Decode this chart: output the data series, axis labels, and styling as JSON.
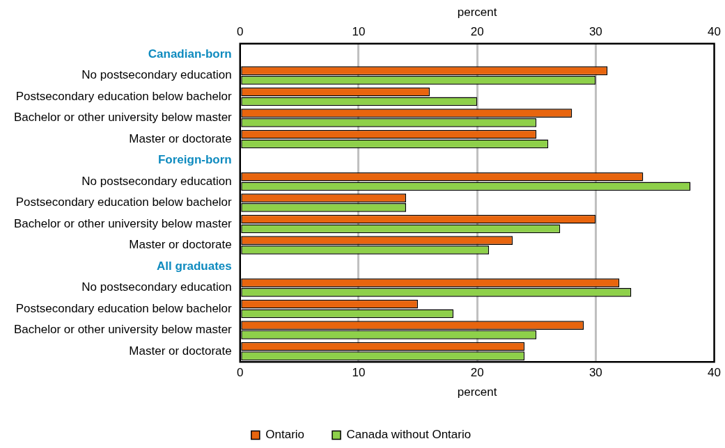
{
  "chart_data": {
    "type": "bar",
    "orientation": "horizontal",
    "xlabel": "percent",
    "x2label": "percent",
    "categories": [
      "Canadian-born",
      "No postsecondary education",
      "Postsecondary education below bachelor",
      "Bachelor or other university below master",
      "Master or doctorate",
      "Foreign-born",
      "No postsecondary education",
      "Postsecondary education below bachelor",
      "Bachelor or other university below master",
      "Master or doctorate",
      "All graduates",
      "No postsecondary education",
      "Postsecondary education below bachelor",
      "Bachelor or other university below master",
      "Master or doctorate"
    ],
    "series": [
      {
        "name": "Ontario",
        "color": "#e8650e",
        "values": [
          null,
          31,
          16,
          28,
          25,
          null,
          34,
          14,
          30,
          23,
          null,
          32,
          15,
          29,
          24
        ]
      },
      {
        "name": "Canada without Ontario",
        "color": "#8ed04a",
        "values": [
          null,
          30,
          20,
          25,
          26,
          null,
          38,
          14,
          27,
          21,
          null,
          33,
          18,
          25,
          24
        ]
      }
    ],
    "xlim": [
      0,
      40
    ],
    "xticks": [
      0,
      10,
      20,
      30,
      40
    ],
    "x2lim": [
      0,
      40
    ],
    "x2ticks": [
      0,
      10,
      20,
      30,
      40
    ],
    "grid": "x",
    "legend": "bottom"
  }
}
